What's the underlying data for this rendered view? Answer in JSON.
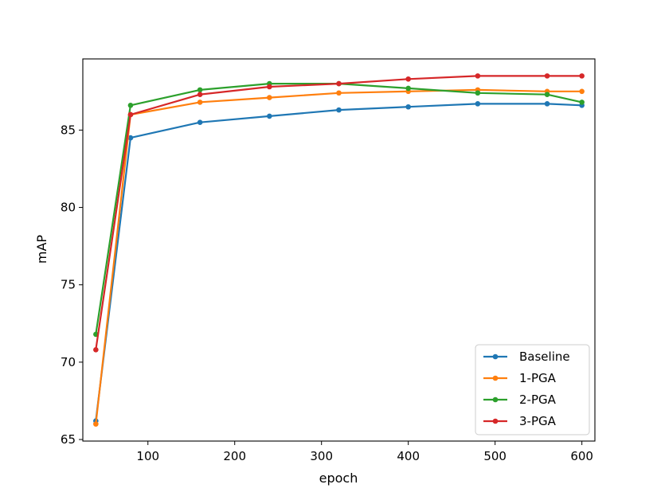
{
  "chart_data": {
    "type": "line",
    "title": "",
    "xlabel": "epoch",
    "ylabel": "mAP",
    "xlim": [
      25,
      615
    ],
    "ylim": [
      64.9,
      89.6
    ],
    "xticks": [
      100,
      200,
      300,
      400,
      500,
      600
    ],
    "yticks": [
      65,
      70,
      75,
      80,
      85
    ],
    "grid": false,
    "legend_position": "lower-right",
    "x": [
      40,
      80,
      160,
      240,
      320,
      400,
      480,
      560,
      600
    ],
    "series": [
      {
        "name": "Baseline",
        "color": "#1f77b4",
        "values": [
          66.2,
          84.5,
          85.5,
          85.9,
          86.3,
          86.5,
          86.7,
          86.7,
          86.6
        ]
      },
      {
        "name": "1-PGA",
        "color": "#ff7f0e",
        "values": [
          66.0,
          86.0,
          86.8,
          87.1,
          87.4,
          87.5,
          87.6,
          87.5,
          87.5
        ]
      },
      {
        "name": "2-PGA",
        "color": "#2ca02c",
        "values": [
          71.8,
          86.6,
          87.6,
          88.0,
          88.0,
          87.7,
          87.4,
          87.3,
          86.8
        ]
      },
      {
        "name": "3-PGA",
        "color": "#d62728",
        "values": [
          70.8,
          86.0,
          87.3,
          87.8,
          88.0,
          88.3,
          88.5,
          88.5,
          88.5
        ]
      }
    ]
  }
}
